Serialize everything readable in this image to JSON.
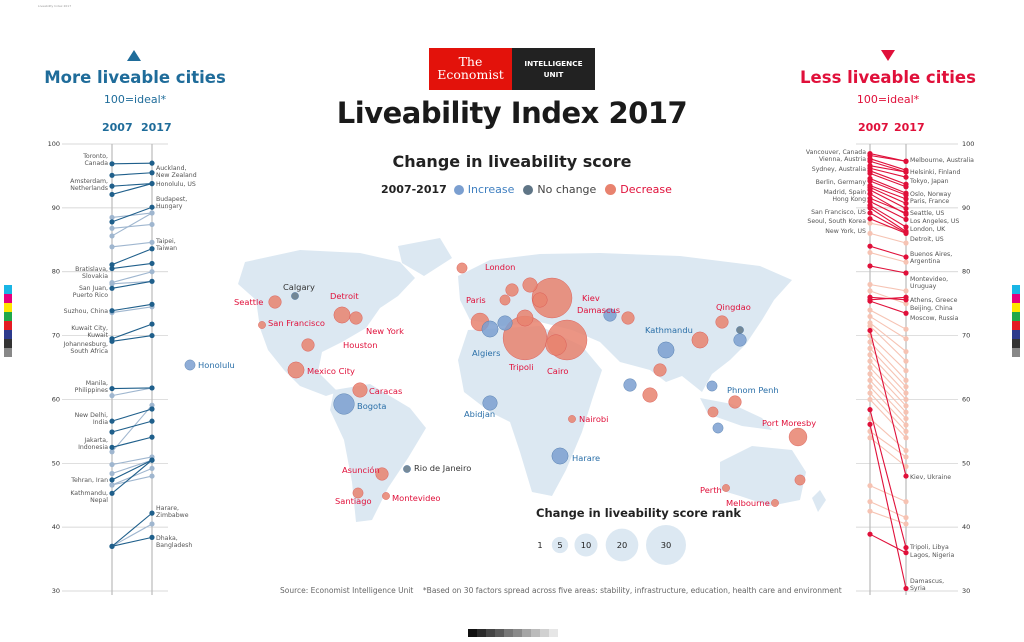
{
  "print_slug": "Liveability Index 2017",
  "logo": {
    "line1": "The",
    "line2": "Economist",
    "unit1": "INTELLIGENCE",
    "unit2": "UNIT",
    "red": "#e3120b",
    "black": "#222222"
  },
  "title": "Liveability Index 2017",
  "subtitle": "Change in liveability score",
  "legend": {
    "period": "2007-2017",
    "increase": "Increase",
    "no_change": "No change",
    "decrease": "Decrease"
  },
  "colors": {
    "increase": "#7b9fd0",
    "increase_dark": "#1f5f8b",
    "no_change": "#5f7586",
    "decrease": "#e8826e",
    "decrease_dark": "#e0103a",
    "decrease_light": "#f6c3b3",
    "land": "#dce8f2",
    "blue_text": "#1f6c9a",
    "red_text": "#e0103a"
  },
  "left_panel": {
    "heading": "More liveable cities",
    "note": "100=ideal*",
    "col_a": "2007",
    "col_b": "2017",
    "arrow": "up-triangle"
  },
  "right_panel": {
    "heading": "Less liveable cities",
    "note": "100=ideal*",
    "col_a": "2007",
    "col_b": "2017",
    "arrow": "down-triangle"
  },
  "size_legend": {
    "title": "Change in liveability score rank",
    "values": [
      "1",
      "5",
      "10",
      "20",
      "30"
    ]
  },
  "footer": {
    "source": "Source: Economist Intelligence Unit",
    "footnote": "*Based on 30 factors spread across five areas: stability, infrastructure, education, health care and environment"
  },
  "chart_data": [
    {
      "type": "slope",
      "title": "More liveable cities",
      "categories": [
        "2007",
        "2017"
      ],
      "ylim": [
        30,
        100
      ],
      "yticks": [
        "100",
        "90",
        "80",
        "70",
        "60",
        "50",
        "40",
        "30"
      ],
      "series": [
        {
          "values": [
            96.9,
            97.0
          ],
          "emphasis": true
        },
        {
          "values": [
            95.1,
            95.5
          ],
          "emphasis": true
        },
        {
          "values": [
            93.4,
            93.8
          ],
          "emphasis": true
        },
        {
          "values": [
            92.1,
            93.8
          ],
          "emphasis": true
        },
        {
          "values": [
            87.8,
            90.1
          ],
          "emphasis": true
        },
        {
          "values": [
            88.5,
            89.2
          ],
          "emphasis": false
        },
        {
          "values": [
            86.8,
            87.4
          ],
          "emphasis": false
        },
        {
          "values": [
            85.6,
            89.2
          ],
          "emphasis": false
        },
        {
          "values": [
            83.9,
            84.6
          ],
          "emphasis": false
        },
        {
          "values": [
            81.1,
            83.6
          ],
          "emphasis": true
        },
        {
          "values": [
            80.5,
            81.3
          ],
          "emphasis": true
        },
        {
          "values": [
            78.3,
            80.0
          ],
          "emphasis": false
        },
        {
          "values": [
            78.1,
            78.5
          ],
          "emphasis": false
        },
        {
          "values": [
            77.4,
            78.5
          ],
          "emphasis": true
        },
        {
          "values": [
            73.9,
            74.9
          ],
          "emphasis": true
        },
        {
          "values": [
            73.6,
            74.5
          ],
          "emphasis": false
        },
        {
          "values": [
            69.5,
            71.8
          ],
          "emphasis": true
        },
        {
          "values": [
            69.1,
            70.0
          ],
          "emphasis": true
        },
        {
          "values": [
            61.7,
            61.8
          ],
          "emphasis": true
        },
        {
          "values": [
            60.6,
            61.8
          ],
          "emphasis": false
        },
        {
          "values": [
            56.6,
            58.5
          ],
          "emphasis": true
        },
        {
          "values": [
            54.9,
            56.6
          ],
          "emphasis": true
        },
        {
          "values": [
            51.8,
            59.1
          ],
          "emphasis": false
        },
        {
          "values": [
            52.5,
            54.1
          ],
          "emphasis": true
        },
        {
          "values": [
            49.8,
            51.0
          ],
          "emphasis": false
        },
        {
          "values": [
            48.4,
            50.5
          ],
          "emphasis": false
        },
        {
          "values": [
            47.4,
            50.5
          ],
          "emphasis": true
        },
        {
          "values": [
            46.6,
            49.2
          ],
          "emphasis": false
        },
        {
          "values": [
            46.6,
            48.0
          ],
          "emphasis": false
        },
        {
          "values": [
            45.3,
            50.5
          ],
          "emphasis": true
        },
        {
          "values": [
            37.0,
            42.2
          ],
          "emphasis": true
        },
        {
          "values": [
            37.0,
            40.5
          ],
          "emphasis": false
        },
        {
          "values": [
            37.0,
            38.4
          ],
          "emphasis": true
        }
      ],
      "labels_2007": [
        "Toronto,|Canada",
        "Amsterdam,|Netherlands",
        "Bratislava,|Slovakia",
        "San Juan,|Puerto Rico",
        "Suzhou, China",
        "Kuwait City,|Kuwait",
        "Johannesburg,|South Africa",
        "Manila,|Philippines",
        "New Delhi,|India",
        "Jakarta,|Indonesia",
        "Tehran, Iran",
        "Kathmandu,|Nepal"
      ],
      "labels_2017": [
        "Auckland,|New Zealand",
        "Honolulu, US",
        "Budapest,|Hungary",
        "Taipei,|Taiwan",
        "Harare,|Zimbabwe",
        "Dhaka,|Bangladesh"
      ]
    },
    {
      "type": "scatter",
      "title": "Change in liveability score rank",
      "points": [
        {
          "name": "Seattle",
          "change": "decrease",
          "rank_change": 3
        },
        {
          "name": "Calgary",
          "change": "no_change",
          "rank_change": 1
        },
        {
          "name": "San Francisco",
          "change": "decrease",
          "rank_change": 1
        },
        {
          "name": "Detroit",
          "change": "decrease",
          "rank_change": 5
        },
        {
          "name": "New York",
          "change": "decrease",
          "rank_change": 3
        },
        {
          "name": "Houston",
          "change": "decrease",
          "rank_change": 3
        },
        {
          "name": "Mexico City",
          "change": "decrease",
          "rank_change": 5
        },
        {
          "name": "Caracas",
          "change": "decrease",
          "rank_change": 4
        },
        {
          "name": "Bogota",
          "change": "increase",
          "rank_change": 8
        },
        {
          "name": "Asunción",
          "change": "decrease",
          "rank_change": 3
        },
        {
          "name": "Rio de Janeiro",
          "change": "no_change",
          "rank_change": 1
        },
        {
          "name": "Santiago",
          "change": "decrease",
          "rank_change": 2
        },
        {
          "name": "Montevideo",
          "change": "decrease",
          "rank_change": 1
        },
        {
          "name": "Honolulu",
          "change": "increase",
          "rank_change": 2
        },
        {
          "name": "London",
          "change": "decrease",
          "rank_change": 3
        },
        {
          "name": "Paris",
          "change": "decrease",
          "rank_change": 2
        },
        {
          "name": "Kiev",
          "change": "decrease",
          "rank_change": 30
        },
        {
          "name": "Damascus",
          "change": "decrease",
          "rank_change": 30
        },
        {
          "name": "Algiers",
          "change": "increase",
          "rank_change": 5
        },
        {
          "name": "Tripoli",
          "change": "decrease",
          "rank_change": 36
        },
        {
          "name": "Cairo",
          "change": "decrease",
          "rank_change": 8
        },
        {
          "name": "Abidjan",
          "change": "increase",
          "rank_change": 4
        },
        {
          "name": "Nairobi",
          "change": "decrease",
          "rank_change": 1
        },
        {
          "name": "Harare",
          "change": "increase",
          "rank_change": 5
        },
        {
          "name": "Kathmandu",
          "change": "increase",
          "rank_change": 5
        },
        {
          "name": "Qingdao",
          "change": "decrease",
          "rank_change": 3
        },
        {
          "name": "Phnom Penh",
          "change": "increase",
          "rank_change": 2
        },
        {
          "name": "Port Moresby",
          "change": "decrease",
          "rank_change": 6
        },
        {
          "name": "Perth",
          "change": "decrease",
          "rank_change": 1
        },
        {
          "name": "Melbourne",
          "change": "decrease",
          "rank_change": 1
        },
        {
          "name": "",
          "change": "decrease",
          "rank_change": 4
        },
        {
          "name": "",
          "change": "decrease",
          "rank_change": 5
        },
        {
          "name": "",
          "change": "increase",
          "rank_change": 4
        },
        {
          "name": "",
          "change": "decrease",
          "rank_change": 6
        },
        {
          "name": "",
          "change": "decrease",
          "rank_change": 4
        },
        {
          "name": "",
          "change": "increase",
          "rank_change": 3
        },
        {
          "name": "",
          "change": "decrease",
          "rank_change": 3
        },
        {
          "name": "",
          "change": "decrease",
          "rank_change": 5
        },
        {
          "name": "",
          "change": "increase",
          "rank_change": 3
        },
        {
          "name": "",
          "change": "decrease",
          "rank_change": 3
        },
        {
          "name": "",
          "change": "decrease",
          "rank_change": 4
        },
        {
          "name": "",
          "change": "increase",
          "rank_change": 3
        },
        {
          "name": "",
          "change": "decrease",
          "rank_change": 2
        },
        {
          "name": "",
          "change": "no_change",
          "rank_change": 1
        },
        {
          "name": "",
          "change": "decrease",
          "rank_change": 2
        },
        {
          "name": "",
          "change": "increase",
          "rank_change": 2
        },
        {
          "name": "",
          "change": "decrease",
          "rank_change": 3
        },
        {
          "name": "",
          "change": "decrease",
          "rank_change": 2
        }
      ]
    },
    {
      "type": "slope",
      "title": "Less liveable cities",
      "categories": [
        "2007",
        "2017"
      ],
      "ylim": [
        30,
        100
      ],
      "yticks": [
        "100",
        "90",
        "80",
        "70",
        "60",
        "50",
        "40",
        "30"
      ],
      "series": [
        {
          "values": [
            98.5,
            97.3
          ],
          "emphasis": true
        },
        {
          "values": [
            98.2,
            97.3
          ],
          "emphasis": true
        },
        {
          "values": [
            97.7,
            95.9
          ],
          "emphasis": true
        },
        {
          "values": [
            97.3,
            95.6
          ],
          "emphasis": true
        },
        {
          "values": [
            96.6,
            95.6
          ],
          "emphasis": true
        },
        {
          "values": [
            96.2,
            94.8
          ],
          "emphasis": true
        },
        {
          "values": [
            95.8,
            93.7
          ],
          "emphasis": true
        },
        {
          "values": [
            95.4,
            93.3
          ],
          "emphasis": true
        },
        {
          "values": [
            94.6,
            92.3
          ],
          "emphasis": true
        },
        {
          "values": [
            94.2,
            92.0
          ],
          "emphasis": true
        },
        {
          "values": [
            93.5,
            91.4
          ],
          "emphasis": true
        },
        {
          "values": [
            93.2,
            90.7
          ],
          "emphasis": true
        },
        {
          "values": [
            92.8,
            89.9
          ],
          "emphasis": true
        },
        {
          "values": [
            92.2,
            89.0
          ],
          "emphasis": true
        },
        {
          "values": [
            91.5,
            89.2
          ],
          "emphasis": true
        },
        {
          "values": [
            91.0,
            88.2
          ],
          "emphasis": true
        },
        {
          "values": [
            90.4,
            87.0
          ],
          "emphasis": true
        },
        {
          "values": [
            90.0,
            86.3
          ],
          "emphasis": true
        },
        {
          "values": [
            89.2,
            86.1
          ],
          "emphasis": true
        },
        {
          "values": [
            88.3,
            86.0
          ],
          "emphasis": true
        },
        {
          "values": [
            87.6,
            86.5
          ],
          "emphasis": false
        },
        {
          "values": [
            86.0,
            84.5
          ],
          "emphasis": false
        },
        {
          "values": [
            84.0,
            82.3
          ],
          "emphasis": true
        },
        {
          "values": [
            83.0,
            81.5
          ],
          "emphasis": false
        },
        {
          "values": [
            80.9,
            79.8
          ],
          "emphasis": true
        },
        {
          "values": [
            78.0,
            77.0
          ],
          "emphasis": false
        },
        {
          "values": [
            77.0,
            75.0
          ],
          "emphasis": false
        },
        {
          "values": [
            76.0,
            75.6
          ],
          "emphasis": true
        },
        {
          "values": [
            75.6,
            76.0
          ],
          "emphasis": true
        },
        {
          "values": [
            75.4,
            73.5
          ],
          "emphasis": true
        },
        {
          "values": [
            74.0,
            71.0
          ],
          "emphasis": false
        },
        {
          "values": [
            73.0,
            69.5
          ],
          "emphasis": false
        },
        {
          "values": [
            72.0,
            67.5
          ],
          "emphasis": false
        },
        {
          "values": [
            71.5,
            66.0
          ],
          "emphasis": false
        },
        {
          "values": [
            70.8,
            48.0
          ],
          "emphasis": true
        },
        {
          "values": [
            70.0,
            64.5
          ],
          "emphasis": false
        },
        {
          "values": [
            69.0,
            63.0
          ],
          "emphasis": false
        },
        {
          "values": [
            68.0,
            62.0
          ],
          "emphasis": false
        },
        {
          "values": [
            67.0,
            61.0
          ],
          "emphasis": false
        },
        {
          "values": [
            66.0,
            60.0
          ],
          "emphasis": false
        },
        {
          "values": [
            65.0,
            59.0
          ],
          "emphasis": false
        },
        {
          "values": [
            64.0,
            58.0
          ],
          "emphasis": false
        },
        {
          "values": [
            63.0,
            57.0
          ],
          "emphasis": false
        },
        {
          "values": [
            62.0,
            56.0
          ],
          "emphasis": false
        },
        {
          "values": [
            61.0,
            55.0
          ],
          "emphasis": false
        },
        {
          "values": [
            60.0,
            54.0
          ],
          "emphasis": false
        },
        {
          "values": [
            57.0,
            52.0
          ],
          "emphasis": false
        },
        {
          "values": [
            55.0,
            51.0
          ],
          "emphasis": false
        },
        {
          "values": [
            54.0,
            49.5
          ],
          "emphasis": false
        },
        {
          "values": [
            46.5,
            44.0
          ],
          "emphasis": false
        },
        {
          "values": [
            44.0,
            41.5
          ],
          "emphasis": false
        },
        {
          "values": [
            42.5,
            40.5
          ],
          "emphasis": false
        },
        {
          "values": [
            58.4,
            36.8
          ],
          "emphasis": true
        },
        {
          "values": [
            56.1,
            30.4
          ],
          "emphasis": true
        },
        {
          "values": [
            38.9,
            36.0
          ],
          "emphasis": true
        }
      ],
      "labels_2007": [
        "Vancouver, Canada",
        "Vienna, Austria",
        "Sydney, Australia",
        "Berlin, Germany",
        "Madrid, Spain",
        "Hong Kong",
        "San Francisco, US",
        "Seoul, South Korea",
        "New York, US"
      ],
      "labels_2017": [
        "Melbourne, Australia",
        "Helsinki, Finland",
        "Tokyo, Japan",
        "Oslo, Norway",
        "Paris, France",
        "Seattle, US",
        "Los Angeles, US",
        "London, UK",
        "Detroit, US",
        "Buenos Aires,|Argentina",
        "Montevideo,|Uruguay",
        "Athens, Greece",
        "Beijing, China",
        "Moscow, Russia",
        "Kiev, Ukraine",
        "Tripoli, Libya",
        "Lagos, Nigeria",
        "Damascus,|Syria"
      ]
    }
  ]
}
